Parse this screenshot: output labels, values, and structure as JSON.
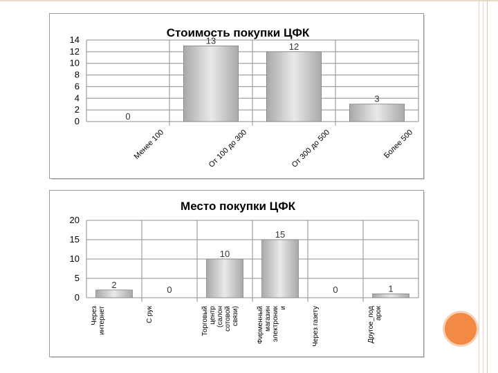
{
  "theme": {
    "bar_fill_light": "#e9e9e9",
    "bar_fill_dark": "#a9a9a9",
    "bar_stroke": "#7f7f7f",
    "accent": "#f28a46",
    "border_lines": [
      "#e0d2bd",
      "#ecd9c6",
      "#d9c8b0"
    ]
  },
  "chart_data": [
    {
      "type": "bar",
      "title": "Стоимость покупки ЦФК",
      "categories": [
        "Менее 100",
        "От 100 до 300",
        "От 300 до 500",
        "Более 500"
      ],
      "values": [
        0,
        13,
        12,
        3
      ],
      "data_labels": [
        "0",
        "13",
        "12",
        "3"
      ],
      "yticks": [
        "0",
        "2",
        "4",
        "6",
        "8",
        "10",
        "12",
        "14"
      ],
      "ylim": [
        0,
        14
      ],
      "grid": true
    },
    {
      "type": "bar",
      "title": "Место покупки ЦФК",
      "categories": [
        [
          "Через",
          "интернет"
        ],
        [
          "С рук"
        ],
        [
          "Торговый",
          "центр",
          "(салон",
          "сотовой",
          "связи)"
        ],
        [
          "Фирменный",
          "магазин",
          "электроник",
          "и"
        ],
        [
          "Через газету"
        ],
        [
          "Другое_под",
          "арок"
        ]
      ],
      "values": [
        2,
        0,
        10,
        15,
        0,
        1
      ],
      "data_labels": [
        "2",
        "0",
        "10",
        "15",
        "0",
        "1"
      ],
      "yticks": [
        "0",
        "5",
        "10",
        "15",
        "20"
      ],
      "ylim": [
        0,
        20
      ],
      "grid": true
    }
  ]
}
